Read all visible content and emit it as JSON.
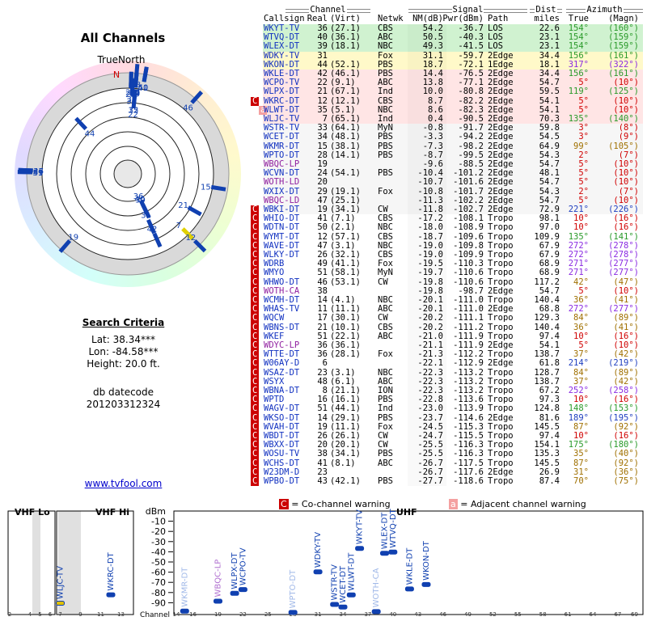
{
  "side": {
    "title": "All Channels",
    "north_label": "TrueNorth",
    "north_mark": "N",
    "criteria_title": "Search Criteria",
    "lat": "Lat: 38.34***",
    "lon": "Lon: -84.58***",
    "height": "Height: 20.0 ft.",
    "datecode_label": "db datecode",
    "datecode": "201203312324",
    "link": "www.tvfool.com"
  },
  "table": {
    "groups": {
      "channel": "Channel",
      "signal": "Signal",
      "dist": "Dist",
      "azimuth": "Azimuth"
    },
    "headers": {
      "call": "Callsign",
      "real": "Real",
      "virt": "(Virt)",
      "net": "Netwk",
      "nm": "NM(dB)",
      "pwr": "Pwr(dBm)",
      "path": "Path",
      "dist": "miles",
      "az": "True",
      "magn": "(Magn)"
    },
    "rows": [
      {
        "call": "WKYT-TV",
        "real": "36",
        "virt": "(27.1)",
        "net": "CBS",
        "nm": "54.2",
        "pwr": "-36.7",
        "path": "LOS",
        "dist": "22.6",
        "az": "154°",
        "magn": "(160°)"
      },
      {
        "call": "WTVQ-DT",
        "real": "40",
        "virt": "(36.1)",
        "net": "ABC",
        "nm": "50.5",
        "pwr": "-40.3",
        "path": "LOS",
        "dist": "23.1",
        "az": "154°",
        "magn": "(159°)"
      },
      {
        "call": "WLEX-DT",
        "real": "39",
        "virt": "(18.1)",
        "net": "NBC",
        "nm": "49.3",
        "pwr": "-41.5",
        "path": "LOS",
        "dist": "23.1",
        "az": "154°",
        "magn": "(159°)"
      },
      {
        "call": "WDKY-TV",
        "real": "31",
        "net": "Fox",
        "nm": "31.1",
        "pwr": "-59.7",
        "path": "2Edge",
        "dist": "34.4",
        "az": "156°",
        "magn": "(161°)"
      },
      {
        "call": "WKON-DT",
        "real": "44",
        "virt": "(52.1)",
        "net": "PBS",
        "nm": "18.7",
        "pwr": "-72.1",
        "path": "1Edge",
        "dist": "18.1",
        "az": "317°",
        "magn": "(322°)"
      },
      {
        "call": "WKLE-DT",
        "real": "42",
        "virt": "(46.1)",
        "net": "PBS",
        "nm": "14.4",
        "pwr": "-76.5",
        "path": "2Edge",
        "dist": "34.4",
        "az": "156°",
        "magn": "(161°)"
      },
      {
        "call": "WCPO-TV",
        "real": "22",
        "virt": "(9.1)",
        "net": "ABC",
        "nm": "13.8",
        "pwr": "-77.1",
        "path": "2Edge",
        "dist": "54.7",
        "az": "5°",
        "magn": "(10°)"
      },
      {
        "call": "WLPX-DT",
        "real": "21",
        "virt": "(67.1)",
        "net": "Ind",
        "nm": "10.0",
        "pwr": "-80.8",
        "path": "2Edge",
        "dist": "59.5",
        "az": "119°",
        "magn": "(125°)"
      },
      {
        "call": "WKRC-DT",
        "real": "12",
        "virt": "(12.1)",
        "net": "CBS",
        "nm": "8.7",
        "pwr": "-82.2",
        "path": "2Edge",
        "dist": "54.1",
        "az": "5°",
        "magn": "(10°)",
        "warn": "C"
      },
      {
        "call": "WLWT-DT",
        "real": "35",
        "virt": "(5.1)",
        "net": "NBC",
        "nm": "8.6",
        "pwr": "-82.3",
        "path": "2Edge",
        "dist": "54.1",
        "az": "5°",
        "magn": "(10°)",
        "warn": "a"
      },
      {
        "call": "WLJC-TV",
        "real": "7",
        "virt": "(65.1)",
        "net": "Ind",
        "nm": "0.4",
        "pwr": "-90.5",
        "path": "2Edge",
        "dist": "70.3",
        "az": "135°",
        "magn": "(140°)"
      },
      {
        "call": "WSTR-TV",
        "real": "33",
        "virt": "(64.1)",
        "net": "MyN",
        "nm": "-0.8",
        "pwr": "-91.7",
        "path": "2Edge",
        "dist": "59.8",
        "az": "3°",
        "magn": "(8°)"
      },
      {
        "call": "WCET-DT",
        "real": "34",
        "virt": "(48.1)",
        "net": "PBS",
        "nm": "-3.3",
        "pwr": "-94.2",
        "path": "2Edge",
        "dist": "54.5",
        "az": "3°",
        "magn": "(9°)"
      },
      {
        "call": "WKMR-DT",
        "real": "15",
        "virt": "(38.1)",
        "net": "PBS",
        "nm": "-7.3",
        "pwr": "-98.2",
        "path": "2Edge",
        "dist": "64.9",
        "az": "99°",
        "magn": "(105°)"
      },
      {
        "call": "WPTO-DT",
        "real": "28",
        "virt": "(14.1)",
        "net": "PBS",
        "nm": "-8.7",
        "pwr": "-99.5",
        "path": "2Edge",
        "dist": "54.3",
        "az": "2°",
        "magn": "(7°)"
      },
      {
        "call": "WBQC-LP",
        "real": "19",
        "nm": "-9.6",
        "pwr": "-88.5",
        "path": "2Edge",
        "dist": "54.7",
        "az": "5°",
        "magn": "(10°)"
      },
      {
        "call": "WCVN-DT",
        "real": "24",
        "virt": "(54.1)",
        "net": "PBS",
        "nm": "-10.4",
        "pwr": "-101.2",
        "path": "2Edge",
        "dist": "48.1",
        "az": "5°",
        "magn": "(10°)"
      },
      {
        "call": "WOTH-LD",
        "real": "20",
        "nm": "-10.7",
        "pwr": "-101.6",
        "path": "2Edge",
        "dist": "54.7",
        "az": "5°",
        "magn": "(10°)"
      },
      {
        "call": "WXIX-DT",
        "real": "29",
        "virt": "(19.1)",
        "net": "Fox",
        "nm": "-10.8",
        "pwr": "-101.7",
        "path": "2Edge",
        "dist": "54.3",
        "az": "2°",
        "magn": "(7°)"
      },
      {
        "call": "WBQC-LD",
        "real": "47",
        "virt": "(25.1)",
        "nm": "-11.3",
        "pwr": "-102.2",
        "path": "2Edge",
        "dist": "54.7",
        "az": "5°",
        "magn": "(10°)"
      },
      {
        "call": "WBKI-DT",
        "real": "19",
        "virt": "(34.1)",
        "net": "CW",
        "nm": "-11.8",
        "pwr": "-102.7",
        "path": "2Edge",
        "dist": "72.9",
        "az": "221°",
        "magn": "(226°)",
        "warn": "C"
      },
      {
        "call": "WHIO-DT",
        "real": "41",
        "virt": "(7.1)",
        "net": "CBS",
        "nm": "-17.2",
        "pwr": "-108.1",
        "path": "Tropo",
        "dist": "98.1",
        "az": "10°",
        "magn": "(16°)",
        "warn": "C"
      },
      {
        "call": "WDTN-DT",
        "real": "50",
        "virt": "(2.1)",
        "net": "NBC",
        "nm": "-18.0",
        "pwr": "-108.9",
        "path": "Tropo",
        "dist": "97.0",
        "az": "10°",
        "magn": "(16°)",
        "warn": "C"
      },
      {
        "call": "WYMT-DT",
        "real": "12",
        "virt": "(57.1)",
        "net": "CBS",
        "nm": "-18.7",
        "pwr": "-109.6",
        "path": "Tropo",
        "dist": "109.9",
        "az": "135°",
        "magn": "(141°)",
        "warn": "C"
      },
      {
        "call": "WAVE-DT",
        "real": "47",
        "virt": "(3.1)",
        "net": "NBC",
        "nm": "-19.0",
        "pwr": "-109.8",
        "path": "Tropo",
        "dist": "67.9",
        "az": "272°",
        "magn": "(278°)",
        "warn": "C"
      },
      {
        "call": "WLKY-DT",
        "real": "26",
        "virt": "(32.1)",
        "net": "CBS",
        "nm": "-19.0",
        "pwr": "-109.9",
        "path": "Tropo",
        "dist": "67.9",
        "az": "272°",
        "magn": "(278°)",
        "warn": "C"
      },
      {
        "call": "WDRB",
        "real": "49",
        "virt": "(41.1)",
        "net": "Fox",
        "nm": "-19.5",
        "pwr": "-110.3",
        "path": "Tropo",
        "dist": "68.9",
        "az": "271°",
        "magn": "(277°)",
        "warn": "C"
      },
      {
        "call": "WMYO",
        "real": "51",
        "virt": "(58.1)",
        "net": "MyN",
        "nm": "-19.7",
        "pwr": "-110.6",
        "path": "Tropo",
        "dist": "68.9",
        "az": "271°",
        "magn": "(277°)",
        "warn": "C"
      },
      {
        "call": "WHWO-DT",
        "real": "46",
        "virt": "(53.1)",
        "net": "CW",
        "nm": "-19.8",
        "pwr": "-110.6",
        "path": "Tropo",
        "dist": "117.2",
        "az": "42°",
        "magn": "(47°)",
        "warn": "C"
      },
      {
        "call": "WOTH-CA",
        "real": "38",
        "nm": "-19.8",
        "pwr": "-98.7",
        "path": "2Edge",
        "dist": "54.7",
        "az": "5°",
        "magn": "(10°)",
        "warn": "C"
      },
      {
        "call": "WCMH-DT",
        "real": "14",
        "virt": "(4.1)",
        "net": "NBC",
        "nm": "-20.1",
        "pwr": "-111.0",
        "path": "Tropo",
        "dist": "140.4",
        "az": "36°",
        "magn": "(41°)",
        "warn": "C"
      },
      {
        "call": "WHAS-TV",
        "real": "11",
        "virt": "(11.1)",
        "net": "ABC",
        "nm": "-20.1",
        "pwr": "-111.0",
        "path": "2Edge",
        "dist": "68.8",
        "az": "272°",
        "magn": "(277°)",
        "warn": "C"
      },
      {
        "call": "WQCW",
        "real": "17",
        "virt": "(30.1)",
        "net": "CW",
        "nm": "-20.2",
        "pwr": "-111.1",
        "path": "Tropo",
        "dist": "129.3",
        "az": "84°",
        "magn": "(89°)",
        "warn": "C"
      },
      {
        "call": "WBNS-DT",
        "real": "21",
        "virt": "(10.1)",
        "net": "CBS",
        "nm": "-20.2",
        "pwr": "-111.2",
        "path": "Tropo",
        "dist": "140.4",
        "az": "36°",
        "magn": "(41°)",
        "warn": "C"
      },
      {
        "call": "WKEF",
        "real": "51",
        "virt": "(22.1)",
        "net": "ABC",
        "nm": "-21.0",
        "pwr": "-111.9",
        "path": "Tropo",
        "dist": "97.4",
        "az": "10°",
        "magn": "(16°)",
        "warn": "C"
      },
      {
        "call": "WDYC-LP",
        "real": "36",
        "virt": "(36.1)",
        "nm": "-21.1",
        "pwr": "-111.9",
        "path": "2Edge",
        "dist": "54.1",
        "az": "5°",
        "magn": "(10°)",
        "warn": "C"
      },
      {
        "call": "WTTE-DT",
        "real": "36",
        "virt": "(28.1)",
        "net": "Fox",
        "nm": "-21.3",
        "pwr": "-112.2",
        "path": "Tropo",
        "dist": "138.7",
        "az": "37°",
        "magn": "(42°)",
        "warn": "C"
      },
      {
        "call": "W06AY-D",
        "real": "6",
        "nm": "-22.1",
        "pwr": "-112.9",
        "path": "2Edge",
        "dist": "61.8",
        "az": "214°",
        "magn": "(219°)",
        "warn": "C"
      },
      {
        "call": "WSAZ-DT",
        "real": "23",
        "virt": "(3.1)",
        "net": "NBC",
        "nm": "-22.3",
        "pwr": "-113.2",
        "path": "Tropo",
        "dist": "128.7",
        "az": "84°",
        "magn": "(89°)",
        "warn": "C"
      },
      {
        "call": "WSYX",
        "real": "48",
        "virt": "(6.1)",
        "net": "ABC",
        "nm": "-22.3",
        "pwr": "-113.2",
        "path": "Tropo",
        "dist": "138.7",
        "az": "37°",
        "magn": "(42°)",
        "warn": "C"
      },
      {
        "call": "WBNA-DT",
        "real": "8",
        "virt": "(21.1)",
        "net": "ION",
        "nm": "-22.3",
        "pwr": "-113.2",
        "path": "Tropo",
        "dist": "67.2",
        "az": "252°",
        "magn": "(258°)",
        "warn": "C"
      },
      {
        "call": "WPTD",
        "real": "16",
        "virt": "(16.1)",
        "net": "PBS",
        "nm": "-22.8",
        "pwr": "-113.6",
        "path": "Tropo",
        "dist": "97.3",
        "az": "10°",
        "magn": "(16°)",
        "warn": "C"
      },
      {
        "call": "WAGV-DT",
        "real": "51",
        "virt": "(44.1)",
        "net": "Ind",
        "nm": "-23.0",
        "pwr": "-113.9",
        "path": "Tropo",
        "dist": "124.8",
        "az": "148°",
        "magn": "(153°)",
        "warn": "C"
      },
      {
        "call": "WKSO-DT",
        "real": "14",
        "virt": "(29.1)",
        "net": "PBS",
        "nm": "-23.7",
        "pwr": "-114.6",
        "path": "2Edge",
        "dist": "81.6",
        "az": "189°",
        "magn": "(195°)",
        "warn": "C"
      },
      {
        "call": "WVAH-DT",
        "real": "19",
        "virt": "(11.1)",
        "net": "Fox",
        "nm": "-24.5",
        "pwr": "-115.3",
        "path": "Tropo",
        "dist": "145.5",
        "az": "87°",
        "magn": "(92°)",
        "warn": "C"
      },
      {
        "call": "WBDT-DT",
        "real": "26",
        "virt": "(26.1)",
        "net": "CW",
        "nm": "-24.7",
        "pwr": "-115.5",
        "path": "Tropo",
        "dist": "97.4",
        "az": "10°",
        "magn": "(16°)",
        "warn": "C"
      },
      {
        "call": "WBXX-DT",
        "real": "20",
        "virt": "(20.1)",
        "net": "CW",
        "nm": "-25.5",
        "pwr": "-116.3",
        "path": "Tropo",
        "dist": "154.1",
        "az": "175°",
        "magn": "(180°)",
        "warn": "C"
      },
      {
        "call": "WOSU-TV",
        "real": "38",
        "virt": "(34.1)",
        "net": "PBS",
        "nm": "-25.5",
        "pwr": "-116.3",
        "path": "Tropo",
        "dist": "135.3",
        "az": "35°",
        "magn": "(40°)",
        "warn": "C"
      },
      {
        "call": "WCHS-DT",
        "real": "41",
        "virt": "(8.1)",
        "net": "ABC",
        "nm": "-26.7",
        "pwr": "-117.5",
        "path": "Tropo",
        "dist": "145.5",
        "az": "87°",
        "magn": "(92°)",
        "warn": "C"
      },
      {
        "call": "W23DM-D",
        "real": "23",
        "nm": "-26.7",
        "pwr": "-117.6",
        "path": "2Edge",
        "dist": "26.9",
        "az": "31°",
        "magn": "(36°)",
        "warn": "C"
      },
      {
        "call": "WPBO-DT",
        "real": "43",
        "virt": "(42.1)",
        "net": "PBS",
        "nm": "-27.7",
        "pwr": "-118.6",
        "path": "Tropo",
        "dist": "87.4",
        "az": "70°",
        "magn": "(75°)",
        "warn": "C"
      }
    ]
  },
  "legend": {
    "co_mark": "C",
    "co": "= Co-channel warning",
    "adj_mark": "a",
    "adj": "= Adjacent channel warning"
  },
  "spectrum": {
    "vhf_lo": "VHF Lo",
    "vhf_hi": "VHF Hi",
    "uhf": "UHF",
    "y_label": "dBm",
    "x_label": "Channel",
    "ylim": [
      -100,
      0
    ],
    "yticks": [
      -10,
      -20,
      -30,
      -40,
      -50,
      -60,
      -70,
      -80,
      -90
    ],
    "vhf_ticks": [
      2,
      4,
      5,
      6,
      7,
      9,
      11,
      13
    ],
    "uhf_ticks": [
      14,
      16,
      19,
      22,
      25,
      28,
      31,
      34,
      37,
      40,
      43,
      46,
      49,
      52,
      55,
      58,
      61,
      64,
      67,
      69
    ]
  }
}
